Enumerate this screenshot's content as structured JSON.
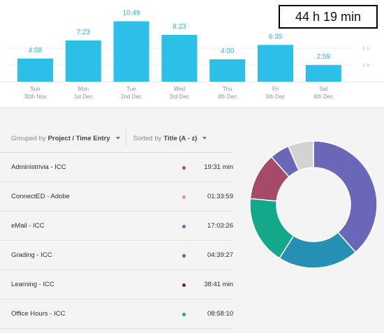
{
  "total": "44 h 19 min",
  "grid_labels": [
    "6 h",
    "3 h"
  ],
  "chart_data": {
    "type": "bar",
    "categories": [
      "Sun",
      "Mon",
      "Tue",
      "Wed",
      "Thu",
      "Fri",
      "Sat"
    ],
    "dates": [
      "30th Nov",
      "1st Dec",
      "2nd Dec",
      "3rd Dec",
      "4th Dec",
      "5th Dec",
      "6th Dec"
    ],
    "labels": [
      "4:08",
      "7:23",
      "10:49",
      "8:23",
      "4:00",
      "6:35",
      "2:59"
    ],
    "values": [
      4.133,
      7.383,
      10.817,
      8.383,
      4.0,
      6.583,
      2.983
    ],
    "ylabel": "",
    "color": "#2cc0e8"
  },
  "controls": {
    "grouped_prefix": "Grouped by",
    "grouped_value": "Project / Time Entry",
    "sorted_prefix": "Sorted by",
    "sorted_value": "Title (A - z)"
  },
  "entries": [
    {
      "title": "Administrivia - ICC",
      "duration": "19:31 min",
      "color": "#a6496b"
    },
    {
      "title": "ConnectED - Adobe",
      "duration": "01:33:59",
      "color": "#e58ab0"
    },
    {
      "title": "eMail - ICC",
      "duration": "17:03:26",
      "color": "#6b67b8"
    },
    {
      "title": "Grading - ICC",
      "duration": "04:39:27",
      "color": "#a6496b"
    },
    {
      "title": "Learning - ICC",
      "duration": "38:41 min",
      "color": "#6b2a2a"
    },
    {
      "title": "Office Hours - ICC",
      "duration": "08:58:10",
      "color": "#2e93b5"
    }
  ],
  "donut": [
    {
      "value": 38.5,
      "color": "#6b67b8"
    },
    {
      "value": 20.5,
      "color": "#2690b4"
    },
    {
      "value": 17.5,
      "color": "#14a88a"
    },
    {
      "value": 12.0,
      "color": "#a6496b"
    },
    {
      "value": 5.0,
      "color": "#6b67b8"
    },
    {
      "value": 6.5,
      "color": "#d3d3d3"
    }
  ]
}
